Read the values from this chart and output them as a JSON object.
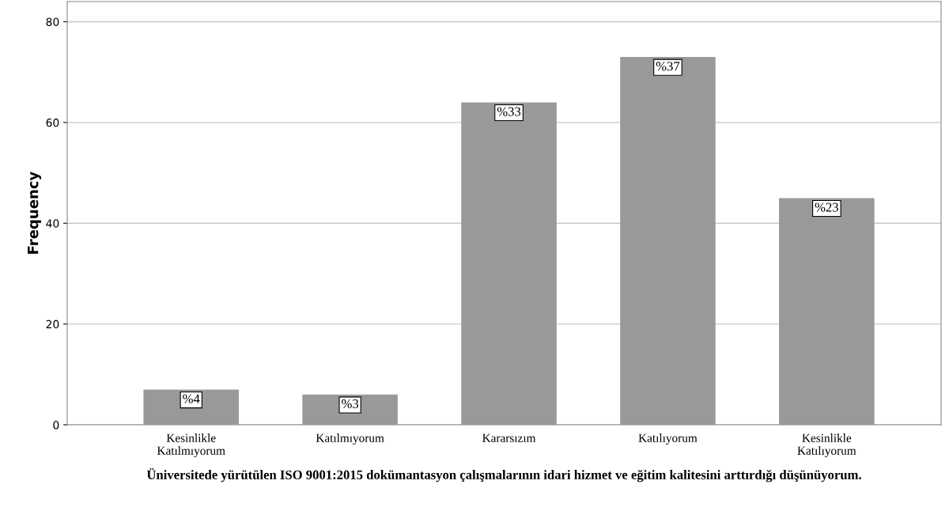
{
  "chart_data": {
    "type": "bar",
    "categories": [
      "Kesinlikle\nKatılmıyorum",
      "Katılmıyorum",
      "Kararsızım",
      "Katılıyorum",
      "Kesinlikle\nKatılıyorum"
    ],
    "values": [
      7,
      6,
      64,
      73,
      45
    ],
    "annotations": [
      {
        "text": "%4",
        "x": "Kesinlikle\nKatılmıyorum",
        "y": 7
      },
      {
        "text": "%3",
        "x": "Katılmıyorum",
        "y": 6
      },
      {
        "text": "%33",
        "x": "Kararsızım",
        "y": 64
      },
      {
        "text": "%37",
        "x": "Katılıyorum",
        "y": 73
      },
      {
        "text": "%23",
        "x": "Kesinlikle\nKatılıyorum",
        "y": 45
      }
    ],
    "color": "#999999",
    "xlabel": "Üniversitede yürütülen ISO 9001:2015 dokümantasyon çalışmalarının idari hizmet ve eğitim kalitesini arttırdığı düşünüyorum.",
    "ylabel": "Frequency",
    "ylim": [
      0,
      84
    ],
    "yticks": [
      0,
      20,
      40,
      60,
      80
    ],
    "grid": "y",
    "legend": false
  }
}
